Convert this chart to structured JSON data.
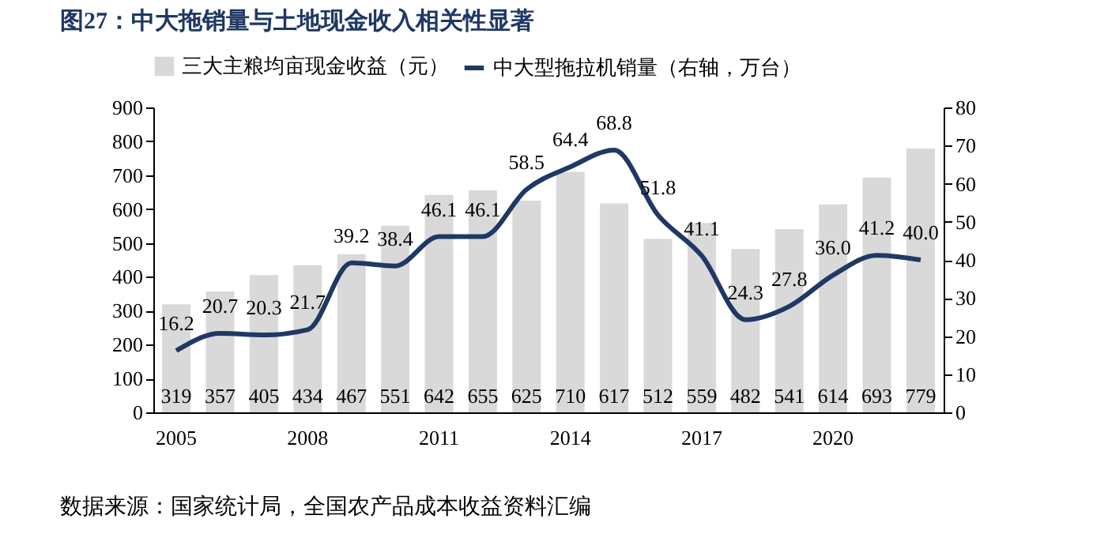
{
  "chart_data": {
    "type": "bar",
    "title": "图27：中大拖销量与土地现金收入相关性显著",
    "categories": [
      "2005",
      null,
      null,
      "2008",
      null,
      null,
      "2011",
      null,
      null,
      "2014",
      null,
      null,
      "2017",
      null,
      null,
      "2020",
      null,
      null
    ],
    "series": [
      {
        "name": "三大主粮均亩现金收益（元）",
        "color": "#d9d9d9",
        "values": [
          319,
          357,
          405,
          434,
          467,
          551,
          642,
          655,
          625,
          710,
          617,
          512,
          559,
          482,
          541,
          614,
          693,
          779
        ]
      },
      {
        "name": "中大型拖拉机销量（右轴，万台）",
        "type": "line",
        "axis": "y2",
        "color": "#1f3864",
        "values": [
          16.2,
          20.7,
          20.3,
          21.7,
          39.2,
          38.4,
          46.1,
          46.1,
          58.5,
          64.4,
          68.8,
          51.8,
          41.1,
          24.3,
          27.8,
          36.0,
          41.2,
          40.0
        ],
        "value_labels": [
          "16.2",
          "20.7",
          "20.3",
          "21.7",
          "39.2",
          "38.4",
          "46.1",
          "46.1",
          "58.5",
          "64.4",
          "68.8",
          "51.8",
          "41.1",
          "24.3",
          "27.8",
          "36.0",
          "41.2",
          "40.0"
        ]
      }
    ],
    "ylim": [
      0,
      900
    ],
    "yticks": [
      0,
      100,
      200,
      300,
      400,
      500,
      600,
      700,
      800,
      900
    ],
    "y2lim": [
      0,
      80
    ],
    "y2ticks": [
      0,
      10,
      20,
      30,
      40,
      50,
      60,
      70,
      80
    ],
    "data_labels": true,
    "grid": false,
    "legend": "top",
    "line_style": "solid",
    "annotations": [
      "数据来源：国家统计局，全国农产品成本收益资料汇编"
    ]
  }
}
